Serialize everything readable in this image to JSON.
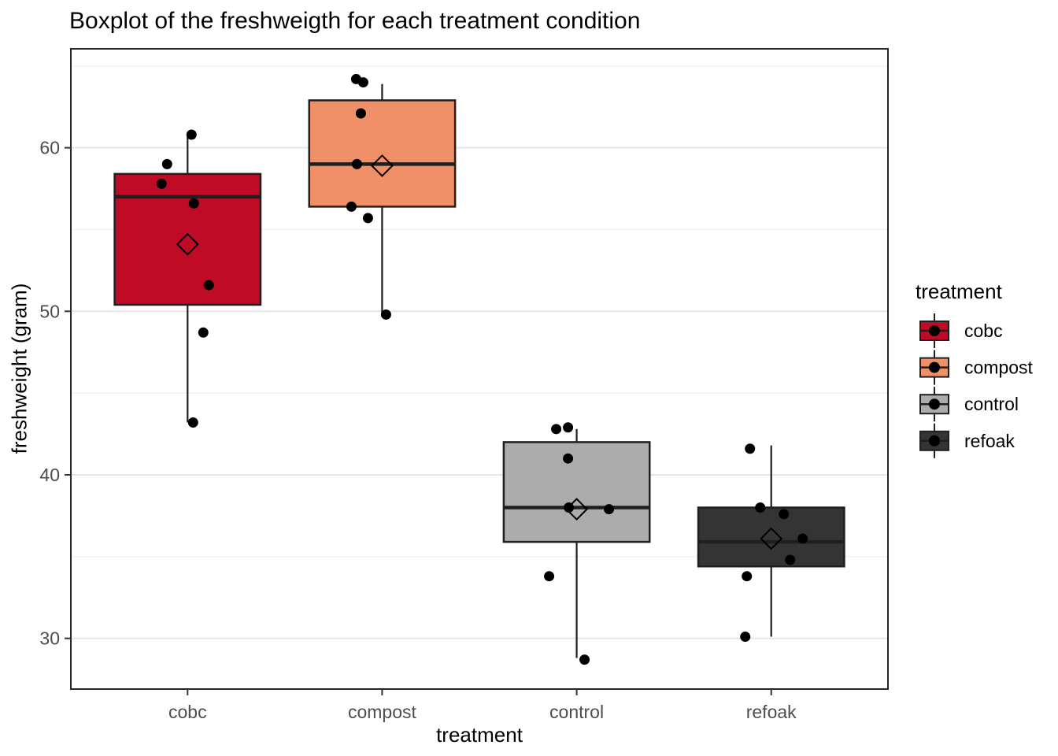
{
  "chart_data": {
    "type": "boxplot",
    "title": "Boxplot of the freshweigth for each treatment condition",
    "xlabel": "treatment",
    "ylabel": "freshweight (gram)",
    "categories": [
      "cobc",
      "compost",
      "control",
      "refoak"
    ],
    "axis": {
      "y_tick_labels": [
        "30",
        "40",
        "50",
        "60"
      ],
      "y_tick_values": [
        30,
        40,
        50,
        60
      ],
      "y_minor_values": [
        35,
        45,
        55,
        65
      ],
      "ylim": [
        26.9,
        66.05
      ],
      "tick_label_color": "#4D4D4D"
    },
    "style": {
      "background": "#FFFFFF",
      "grid_major_color": "#E6E6E6",
      "grid_minor_color": "#F1F1F1",
      "panel_border_color": "#262626",
      "box_stroke_color": "#1F1F1F",
      "point_color": "#000000"
    },
    "legend": {
      "title": "treatment",
      "position": "right",
      "entries": [
        {
          "label": "cobc",
          "fill": "#C00B26"
        },
        {
          "label": "compost",
          "fill": "#F09069"
        },
        {
          "label": "control",
          "fill": "#ACACAC"
        },
        {
          "label": "refoak",
          "fill": "#343434"
        }
      ]
    },
    "series": [
      {
        "name": "cobc",
        "fill": "#C00B26",
        "q1": 50.4,
        "median": 57.0,
        "q3": 58.4,
        "whisker_low": 43.2,
        "whisker_high": 60.8,
        "mean": 54.1,
        "points": [
          {
            "value": 60.8,
            "dx": 5
          },
          {
            "value": 59.0,
            "dx": -26
          },
          {
            "value": 57.8,
            "dx": -33
          },
          {
            "value": 56.6,
            "dx": 8
          },
          {
            "value": 51.6,
            "dx": 27
          },
          {
            "value": 48.7,
            "dx": 20
          },
          {
            "value": 43.2,
            "dx": 7
          }
        ]
      },
      {
        "name": "compost",
        "fill": "#F09069",
        "q1": 56.4,
        "median": 59.0,
        "q3": 62.9,
        "whisker_low": 49.9,
        "whisker_high": 63.9,
        "mean": 58.9,
        "points": [
          {
            "value": 64.2,
            "dx": -33
          },
          {
            "value": 64.0,
            "dx": -24
          },
          {
            "value": 62.1,
            "dx": -27
          },
          {
            "value": 59.0,
            "dx": -32
          },
          {
            "value": 56.4,
            "dx": -39
          },
          {
            "value": 55.7,
            "dx": -18
          },
          {
            "value": 49.8,
            "dx": 5
          }
        ]
      },
      {
        "name": "control",
        "fill": "#ACACAC",
        "q1": 35.9,
        "median": 38.0,
        "q3": 42.0,
        "whisker_low": 28.8,
        "whisker_high": 42.8,
        "mean": 37.9,
        "points": [
          {
            "value": 42.9,
            "dx": -11
          },
          {
            "value": 42.8,
            "dx": -26
          },
          {
            "value": 41.0,
            "dx": -11
          },
          {
            "value": 38.0,
            "dx": -10
          },
          {
            "value": 37.9,
            "dx": 41
          },
          {
            "value": 33.8,
            "dx": -35
          },
          {
            "value": 28.7,
            "dx": 10
          }
        ]
      },
      {
        "name": "refoak",
        "fill": "#343434",
        "q1": 34.4,
        "median": 35.9,
        "q3": 38.0,
        "whisker_low": 30.1,
        "whisker_high": 41.8,
        "mean": 36.1,
        "points": [
          {
            "value": 41.6,
            "dx": -27
          },
          {
            "value": 38.0,
            "dx": -14
          },
          {
            "value": 37.6,
            "dx": 16
          },
          {
            "value": 36.1,
            "dx": 40
          },
          {
            "value": 34.8,
            "dx": 24
          },
          {
            "value": 33.8,
            "dx": -31
          },
          {
            "value": 30.1,
            "dx": -33
          }
        ]
      }
    ]
  }
}
